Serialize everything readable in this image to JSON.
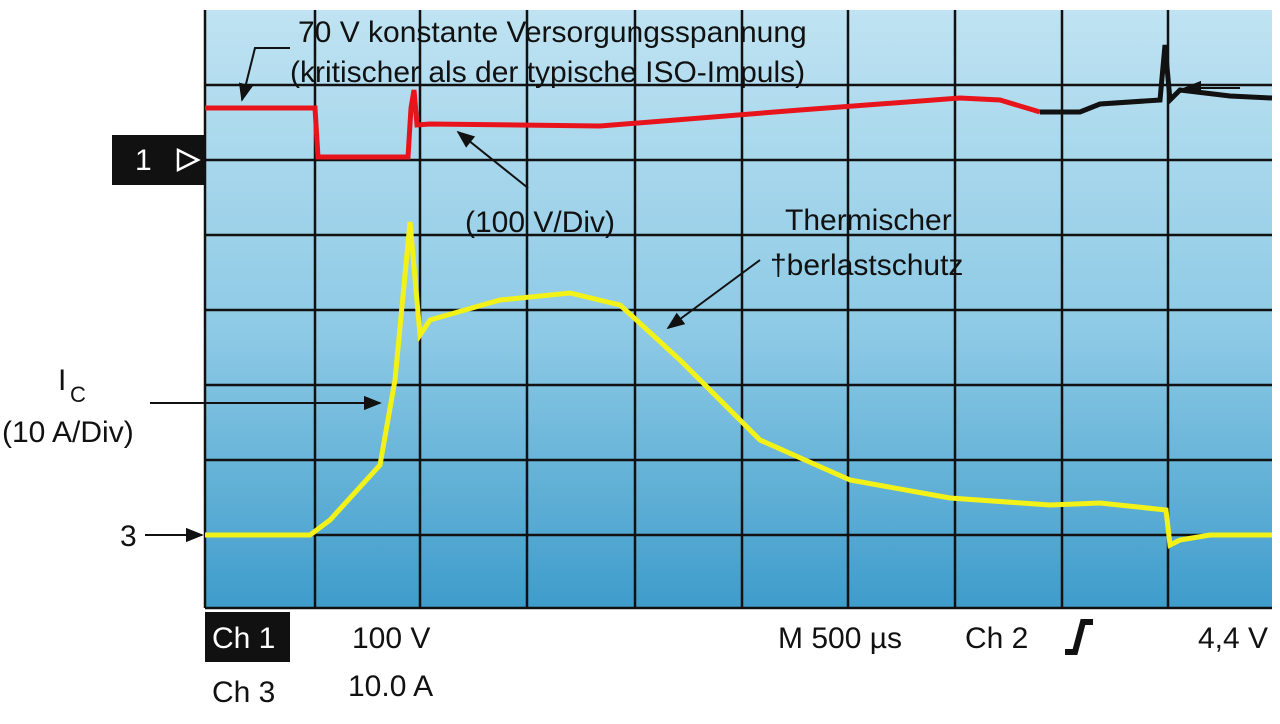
{
  "annotations": {
    "supply": "70 V konstante Versorgungsspannung",
    "supply_note": "(kritischer als der typische ISO-Impuls)",
    "v_scale": "(100 V/Div)",
    "thermal_1": "Thermischer",
    "thermal_2": "†berlastschutz",
    "ic": "I",
    "ic_sub": "C",
    "ic_scale": "(10 A/Div)"
  },
  "markers": {
    "ch1": "1",
    "ch3": "3"
  },
  "footer": {
    "ch1": "Ch 1",
    "ch1_scale": "100 V",
    "ch3": "Ch 3",
    "ch3_scale": "10.0 A",
    "timebase": "M 500 µs",
    "trigger_ch": "Ch 2",
    "trigger_level": "4,4 V"
  }
}
